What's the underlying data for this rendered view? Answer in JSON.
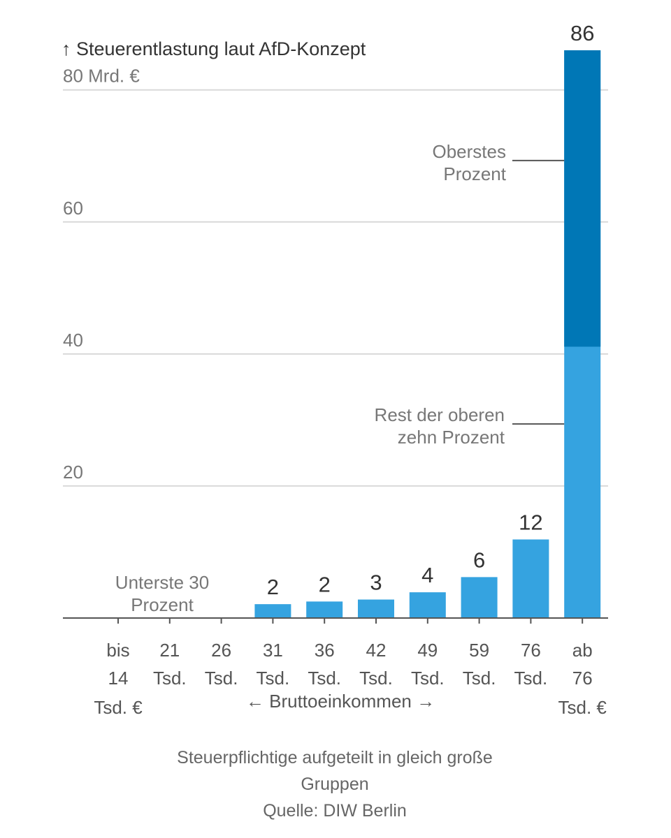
{
  "chart_data": {
    "type": "bar",
    "title": "↑ Steuerentlastung laut AfD-Konzept",
    "ylabel": "Mrd. €",
    "ylim": [
      0,
      86
    ],
    "yticks": [
      {
        "value": 20,
        "label": "20"
      },
      {
        "value": 40,
        "label": "40"
      },
      {
        "value": 60,
        "label": "60"
      },
      {
        "value": 80,
        "label": "80 Mrd. €"
      }
    ],
    "categories": [
      [
        "bis",
        "14",
        "Tsd. €"
      ],
      [
        "21",
        "Tsd."
      ],
      [
        "26",
        "Tsd."
      ],
      [
        "31",
        "Tsd."
      ],
      [
        "36",
        "Tsd."
      ],
      [
        "42",
        "Tsd."
      ],
      [
        "49",
        "Tsd."
      ],
      [
        "59",
        "Tsd."
      ],
      [
        "76",
        "Tsd."
      ],
      [
        "ab",
        "76",
        "Tsd. €"
      ]
    ],
    "values": [
      0,
      0,
      0,
      2,
      2,
      3,
      4,
      6,
      12,
      86
    ],
    "value_labels": [
      "",
      "",
      "",
      "2",
      "2",
      "3",
      "4",
      "6",
      "12",
      "86"
    ],
    "bar_heights_precise": [
      0,
      0,
      0,
      2.1,
      2.5,
      2.8,
      3.9,
      6.2,
      11.9,
      86
    ],
    "series": [
      {
        "name": "Rest der oberen zehn Prozent",
        "color": "#35a3e0"
      },
      {
        "name": "Oberstes Prozent",
        "color": "#0077b6",
        "segment": {
          "category_index": 9,
          "from": 41.1,
          "to": 86
        }
      }
    ],
    "annotations": [
      {
        "lines": [
          "Unterste 30",
          "Prozent"
        ],
        "target": "first three groups"
      },
      {
        "lines": [
          "Oberstes",
          "Prozent"
        ],
        "value": 69.3
      },
      {
        "lines": [
          "Rest der oberen",
          "zehn Prozent"
        ],
        "value": 29.4
      }
    ],
    "xlabel": "← Bruttoeinkommen →",
    "footer": [
      "Steuerpflichtige aufgeteilt in gleich große",
      "Gruppen",
      "Quelle: DIW Berlin"
    ]
  }
}
